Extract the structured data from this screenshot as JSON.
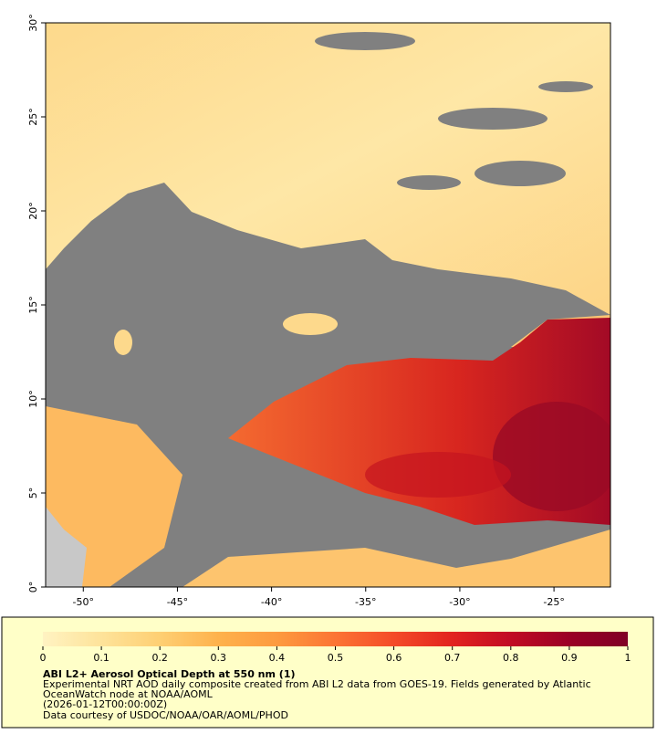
{
  "map": {
    "xlim": [
      -52,
      -22
    ],
    "ylim": [
      0,
      30
    ],
    "xticks": [
      {
        "value": -50,
        "label": "-50°"
      },
      {
        "value": -45,
        "label": "-45°"
      },
      {
        "value": -40,
        "label": "-40°"
      },
      {
        "value": -35,
        "label": "-35°"
      },
      {
        "value": -30,
        "label": "-30°"
      },
      {
        "value": -25,
        "label": "-25°"
      }
    ],
    "yticks": [
      {
        "value": 0,
        "label": "0°"
      },
      {
        "value": 5,
        "label": "5°"
      },
      {
        "value": 10,
        "label": "10°"
      },
      {
        "value": 15,
        "label": "15°"
      },
      {
        "value": 20,
        "label": "20°"
      },
      {
        "value": 25,
        "label": "25°"
      },
      {
        "value": 30,
        "label": "30°"
      }
    ]
  },
  "colorbar": {
    "lim": [
      0,
      1
    ],
    "ticks": [
      0,
      0.1,
      0.2,
      0.3,
      0.4,
      0.5,
      0.6,
      0.7,
      0.8,
      0.9,
      1
    ],
    "colormap": [
      "#fff3c2",
      "#fee39a",
      "#fecf73",
      "#feb24c",
      "#fd9a3f",
      "#fc7434",
      "#f44b28",
      "#e2231f",
      "#c10b24",
      "#9a0026",
      "#800026"
    ]
  },
  "caption": {
    "title": "ABI L2+ Aerosol Optical Depth at 550 nm (1)",
    "description": [
      "Experimental NRT AOD daily composite created from ABI L2 data from GOES-19. Fields generated by Atlantic",
      "OceanWatch node at NOAA/AOML"
    ],
    "date": "(2026-01-12T00:00:00Z)",
    "credit": "Data courtesy of USDOC/NOAA/OAR/AOML/PHOD"
  }
}
